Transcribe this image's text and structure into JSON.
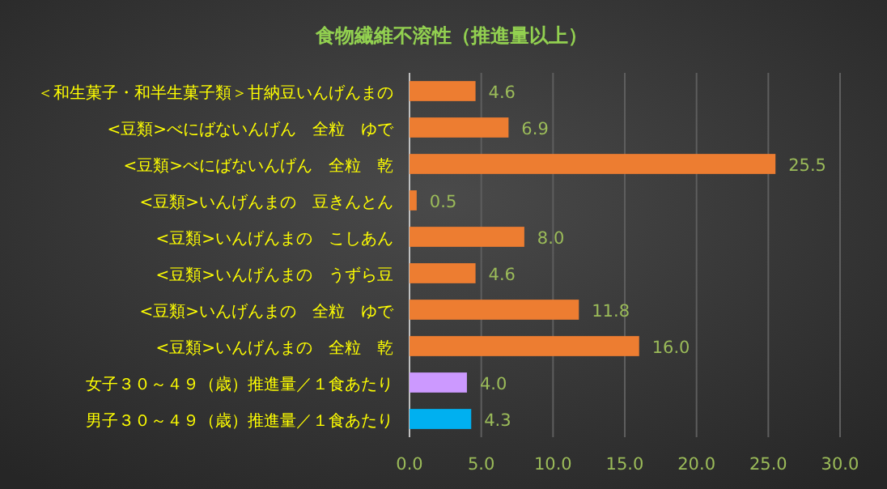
{
  "chart_data": {
    "type": "bar",
    "orientation": "horizontal",
    "title": "食物繊維不溶性（推進量以上）",
    "categories": [
      "＜和生菓子・和半生菓子類＞甘納豆いんげんまの",
      "<豆類>べにばないんげん　全粒　ゆで",
      "<豆類>べにばないんげん　全粒　乾",
      "<豆類>いんげんまの　豆きんとん",
      "<豆類>いんげんまの　こしあん",
      "<豆類>いんげんまの　うずら豆",
      "<豆類>いんげんまの　全粒　ゆで",
      "<豆類>いんげんまの　全粒　乾",
      "女子３０～４９（歳）推進量／１食あたり",
      "男子３０～４９（歳）推進量／１食あたり"
    ],
    "values": [
      4.6,
      6.9,
      25.5,
      0.5,
      8.0,
      4.6,
      11.8,
      16.0,
      4.0,
      4.3
    ],
    "colors": [
      "#ed7d31",
      "#ed7d31",
      "#ed7d31",
      "#ed7d31",
      "#ed7d31",
      "#ed7d31",
      "#ed7d31",
      "#ed7d31",
      "#cc99ff",
      "#00b0f0"
    ],
    "value_labels": [
      "4.6",
      "6.9",
      "25.5",
      "0.5",
      "8.0",
      "4.6",
      "11.8",
      "16.0",
      "4.0",
      "4.3"
    ],
    "xlim": [
      0,
      30
    ],
    "xticks": [
      {
        "value": 0,
        "label": "0.0"
      },
      {
        "value": 5,
        "label": "5.0"
      },
      {
        "value": 10,
        "label": "10.0"
      },
      {
        "value": 15,
        "label": "15.0"
      },
      {
        "value": 20,
        "label": "20.0"
      },
      {
        "value": 25,
        "label": "25.0"
      },
      {
        "value": 30,
        "label": "30.0"
      }
    ],
    "grid": "x"
  }
}
